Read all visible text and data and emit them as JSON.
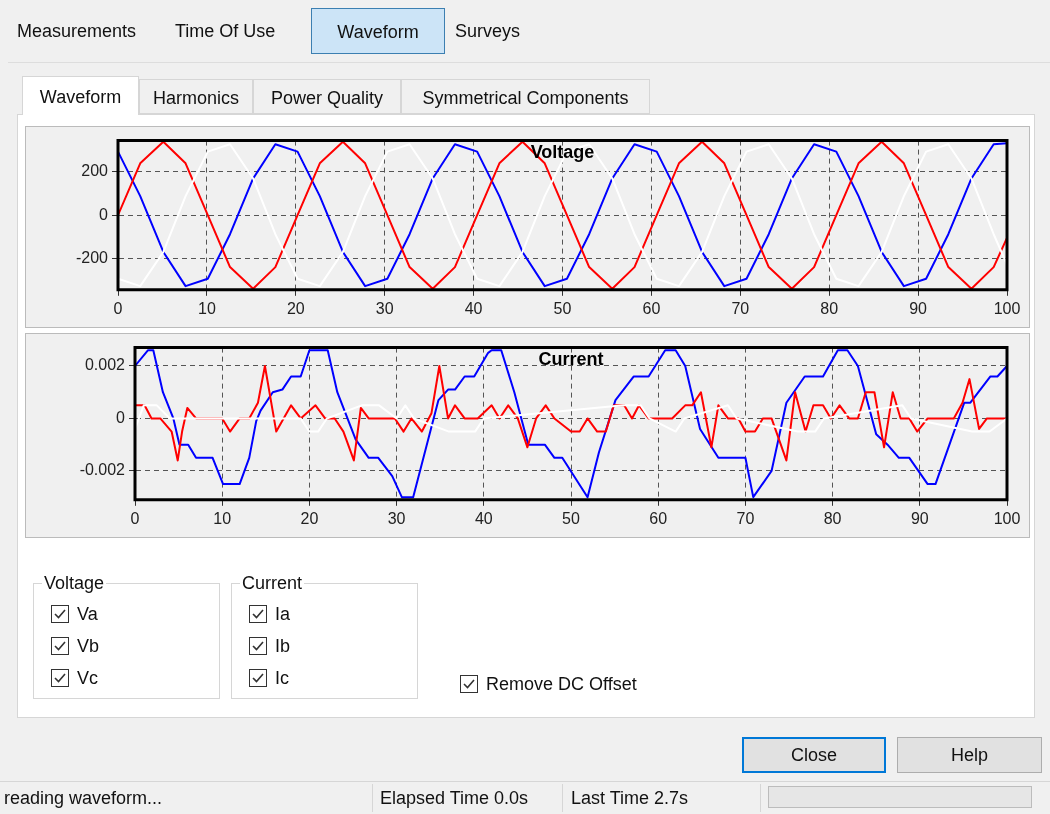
{
  "chart_data": [
    {
      "type": "line",
      "title": "Voltage",
      "xlim": [
        0,
        100
      ],
      "xticks": [
        0,
        10,
        20,
        30,
        40,
        50,
        60,
        70,
        80,
        90,
        100
      ],
      "ylim": [
        -345,
        345
      ],
      "yticks": [
        -200,
        0,
        200
      ],
      "grid": true,
      "marker": "none",
      "x": [
        0,
        2.5,
        5.1,
        7.6,
        10.1,
        12.6,
        15.2,
        17.7,
        20.2,
        22.7,
        25.3,
        27.8,
        30.3,
        32.8,
        35.4,
        37.9,
        40.4,
        42.9,
        45.5,
        48.0,
        50.5,
        53.0,
        55.6,
        58.1,
        60.6,
        63.1,
        65.7,
        68.2,
        70.7,
        73.2,
        75.8,
        78.3,
        80.8,
        83.3,
        85.9,
        88.4,
        90.9,
        93.4,
        96.0,
        98.5,
        100
      ],
      "series": [
        {
          "color": "#ffffff",
          "values": [
            -294,
            -328,
            -170,
            88,
            294,
            328,
            170,
            -88,
            -294,
            -328,
            -170,
            88,
            294,
            328,
            170,
            -88,
            -294,
            -328,
            -170,
            88,
            294,
            328,
            170,
            -88,
            -294,
            -328,
            -170,
            88,
            294,
            328,
            170,
            -88,
            -294,
            -328,
            -170,
            88,
            294,
            328,
            170,
            -88,
            -228
          ]
        },
        {
          "color": "#ff0000",
          "values": [
            0,
            240,
            340,
            240,
            0,
            -240,
            -340,
            -240,
            0,
            240,
            340,
            240,
            0,
            -240,
            -340,
            -240,
            0,
            240,
            340,
            240,
            0,
            -240,
            -340,
            -240,
            0,
            240,
            340,
            240,
            0,
            -240,
            -340,
            -240,
            0,
            240,
            340,
            240,
            0,
            -240,
            -340,
            -240,
            -105
          ]
        },
        {
          "color": "#0000ff",
          "values": [
            294,
            88,
            -170,
            -328,
            -294,
            -88,
            170,
            328,
            294,
            88,
            -170,
            -328,
            -294,
            -88,
            170,
            328,
            294,
            88,
            -170,
            -328,
            -294,
            -88,
            170,
            328,
            294,
            88,
            -170,
            -328,
            -294,
            -88,
            170,
            328,
            294,
            88,
            -170,
            -328,
            -294,
            -88,
            170,
            328,
            333
          ]
        }
      ]
    },
    {
      "type": "line",
      "title": "Current",
      "xlim": [
        0,
        100
      ],
      "xticks": [
        0,
        10,
        20,
        30,
        40,
        50,
        60,
        70,
        80,
        90,
        100
      ],
      "ylim": [
        -0.0031,
        0.0027
      ],
      "yticks": [
        -0.002,
        0,
        0.002
      ],
      "grid": true,
      "marker": "none",
      "series": [
        {
          "color": "#ffffff",
          "x": [
            0,
            1,
            2.5,
            4,
            19,
            20,
            21,
            22,
            26,
            28,
            30,
            31,
            32,
            36,
            39,
            40,
            56,
            58,
            59,
            62,
            63,
            68,
            69,
            76,
            78,
            79,
            88,
            89,
            96,
            98,
            100
          ],
          "values": [
            -0.0004,
            0.0005,
            0.0005,
            0,
            0,
            -0.0005,
            -0.0005,
            0,
            0.0005,
            0.0005,
            0,
            0.0005,
            0,
            -0.0005,
            -0.0005,
            0,
            0.0005,
            0.0005,
            0,
            -0.0005,
            0,
            0.0005,
            0,
            -0.0005,
            -0.0005,
            0,
            0.0005,
            0,
            -0.0005,
            -0.0005,
            0
          ]
        },
        {
          "color": "#ff0000",
          "x": [
            0,
            1.1,
            1.9,
            2.9,
            4.2,
            4.9,
            5.4,
            6,
            7,
            10,
            10.9,
            12,
            13.1,
            14.1,
            14.9,
            16.2,
            17.9,
            19,
            20.7,
            21.8,
            22.9,
            23.9,
            25.1,
            25.9,
            26.8,
            29.8,
            30.8,
            31.7,
            32.9,
            34,
            34.9,
            35.9,
            36.7,
            37.8,
            39.3,
            40.9,
            41.8,
            42.8,
            43.9,
            45,
            46,
            47.1,
            48.1,
            50,
            51,
            51.9,
            53,
            54,
            54.9,
            56.1,
            57,
            57.8,
            58.9,
            61.6,
            63.1,
            63.9,
            64.9,
            66.1,
            66.9,
            68,
            69.2,
            70,
            71.1,
            72,
            73,
            74.7,
            75.7,
            76.9,
            77.8,
            78.9,
            79.8,
            80.8,
            81.9,
            82.9,
            83.8,
            84.8,
            85.9,
            86.9,
            87.8,
            88.8,
            89.7,
            90.9,
            93.9,
            94.9,
            95.7,
            96.8,
            97.7,
            100
          ],
          "values": [
            0.0005,
            0.0005,
            0,
            0,
            -0.0005,
            -0.0016,
            -0.0005,
            0.0004,
            0,
            0,
            -0.0005,
            0,
            0,
            0.0006,
            0.002,
            -0.0005,
            0.0005,
            0,
            0.0005,
            0,
            0,
            -0.0005,
            -0.0016,
            0.0004,
            0,
            0,
            -0.0005,
            0,
            -0.0005,
            0.0002,
            0.002,
            0,
            0.0005,
            0,
            0,
            0.0005,
            0,
            0.0005,
            0,
            -0.0011,
            0,
            0.0005,
            0,
            -0.0005,
            -0.0005,
            0,
            -0.0005,
            -0.0005,
            0.0005,
            0.0005,
            0,
            0.0005,
            0,
            0,
            0.0005,
            0.0005,
            0.001,
            -0.0011,
            0.0005,
            0,
            0,
            -0.0005,
            -0.0005,
            0,
            0,
            -0.0016,
            0.001,
            -0.0005,
            0.0005,
            0.0005,
            0,
            0.0005,
            0,
            0,
            0.001,
            0.001,
            -0.0011,
            0.001,
            0,
            0,
            -0.0005,
            0,
            0,
            0.0006,
            0.0015,
            -0.0004,
            0,
            0
          ]
        },
        {
          "color": "#0000ff",
          "x": [
            0,
            1.5,
            2.1,
            3.2,
            4.4,
            5.1,
            6.1,
            7,
            8.9,
            10.1,
            12,
            13.1,
            13.9,
            14.4,
            15.8,
            16.9,
            17.9,
            19,
            20,
            22.1,
            23.2,
            25.3,
            26.8,
            27.9,
            29.5,
            30.6,
            31.9,
            34.8,
            35.9,
            36.7,
            37.8,
            38.9,
            40.5,
            40.9,
            42,
            43.5,
            45.1,
            47,
            48.1,
            49,
            51.9,
            53.2,
            55.1,
            57.2,
            58.9,
            60.8,
            62,
            63.1,
            64.8,
            66.9,
            70,
            70.9,
            73,
            74.7,
            76.8,
            78.9,
            80.6,
            81.7,
            82.9,
            85,
            86.3,
            87.6,
            88.8,
            90.9,
            91.8,
            95.1,
            95.8,
            98.1,
            98.9,
            100
          ],
          "values": [
            0.002,
            0.0026,
            0.0026,
            0.001,
            0,
            -0.001,
            -0.001,
            -0.0015,
            -0.0015,
            -0.0025,
            -0.0025,
            -0.0015,
            -0.0001,
            0.0003,
            0.001,
            0.0011,
            0.0016,
            0.0016,
            0.0026,
            0.0026,
            0.001,
            -0.0008,
            -0.0015,
            -0.0015,
            -0.0022,
            -0.003,
            -0.003,
            0.0007,
            0.0011,
            0.0011,
            0.0016,
            0.0016,
            0.0025,
            0.0026,
            0.0026,
            0.001,
            -0.001,
            -0.001,
            -0.0015,
            -0.0015,
            -0.003,
            -0.0013,
            0.0007,
            0.0016,
            0.0016,
            0.0026,
            0.0026,
            0.002,
            -0.0004,
            -0.0015,
            -0.0015,
            -0.003,
            -0.002,
            0.0006,
            0.0016,
            0.0016,
            0.0026,
            0.0026,
            0.002,
            -0.0006,
            -0.001,
            -0.0015,
            -0.0015,
            -0.0025,
            -0.0025,
            0.0006,
            0.0006,
            0.0016,
            0.0016,
            0.002
          ]
        }
      ]
    },
    {
      "type": "other",
      "annotations": [
        "Measurements",
        "Time Of Use",
        "Waveform",
        "Surveys",
        "Waveform",
        "Harmonics",
        "Power Quality",
        "Symmetrical Components",
        "Voltage",
        "Va",
        "Vb",
        "Vc",
        "Current",
        "Ia",
        "Ib",
        "Ic",
        "Remove DC Offset",
        "Close",
        "Help",
        "reading waveform...",
        "Elapsed Time 0.0s",
        "Last Time 2.7s"
      ]
    }
  ]
}
